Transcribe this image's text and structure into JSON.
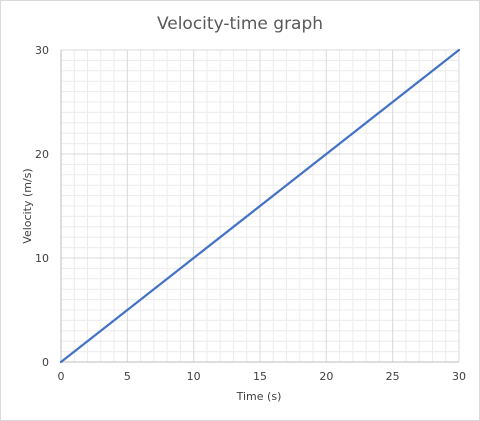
{
  "chart_data": {
    "type": "line",
    "title": "Velocity-time graph",
    "xlabel": "Time (s)",
    "ylabel": "Velocity (m/s)",
    "xlim": [
      0,
      30
    ],
    "ylim": [
      0,
      30
    ],
    "x_ticks": [
      0,
      5,
      10,
      15,
      20,
      25,
      30
    ],
    "y_ticks": [
      0,
      10,
      20,
      30
    ],
    "x_tick_labels": [
      "0",
      "5",
      "10",
      "15",
      "20",
      "25",
      "30"
    ],
    "y_tick_labels": [
      "0",
      "10",
      "20",
      "30"
    ],
    "major_grid": true,
    "minor_grid": true,
    "legend": "none",
    "colors": {
      "line": "#4472c4",
      "major_grid": "#d9d9d9",
      "minor_grid": "#ececec",
      "axis": "#bfbfbf"
    },
    "series": [
      {
        "x": [
          0,
          5,
          10,
          15,
          20,
          25,
          30
        ],
        "y": [
          0,
          5,
          10,
          15,
          20,
          25,
          30
        ]
      }
    ]
  }
}
